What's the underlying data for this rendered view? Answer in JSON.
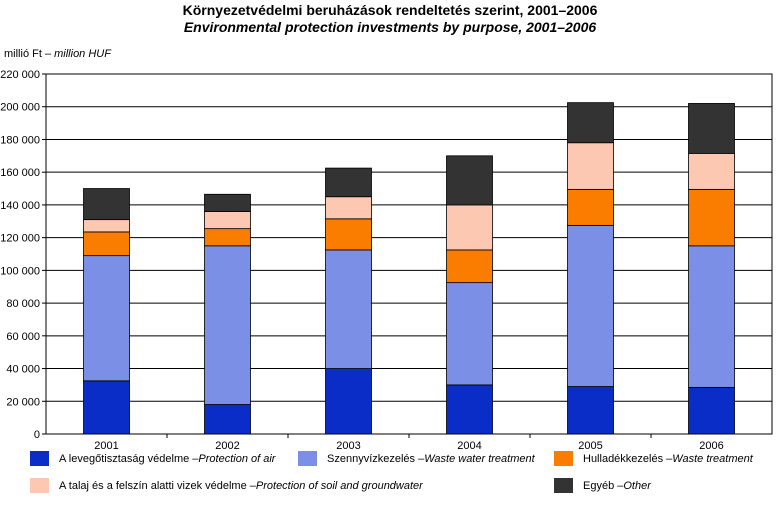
{
  "title_hu": "Környezetvédelmi beruházások rendeltetés szerint, 2001–2006",
  "title_en": "Environmental protection investments by purpose, 2001–2006",
  "unit_hu": "millió Ft – ",
  "unit_en": "million HUF",
  "chart_data": {
    "type": "bar",
    "stacked": true,
    "categories": [
      "2001",
      "2002",
      "2003",
      "2004",
      "2005",
      "2006"
    ],
    "ylim": [
      0,
      220000
    ],
    "yticks": [
      0,
      20000,
      40000,
      60000,
      80000,
      100000,
      120000,
      140000,
      160000,
      180000,
      200000,
      220000
    ],
    "ytick_labels": [
      "0",
      "20 000",
      "40 000",
      "60 000",
      "80 000",
      "100 000",
      "120 000",
      "140 000",
      "160 000",
      "180 000",
      "200 000",
      "220 000"
    ],
    "grid": true,
    "series": [
      {
        "name_hu": "A levegőtisztaság védelme – ",
        "name_en": "Protection of air",
        "color": "#0a2dc8",
        "values": [
          32500,
          18000,
          40000,
          30000,
          29000,
          28500
        ]
      },
      {
        "name_hu": "Szennyvízkezelés – ",
        "name_en": "Waste water treatment",
        "color": "#7b8fe6",
        "values": [
          76500,
          97000,
          72500,
          62500,
          98500,
          86500
        ]
      },
      {
        "name_hu": "Hulladékkezelés – ",
        "name_en": "Waste treatment",
        "color": "#fa7d00",
        "values": [
          14500,
          10500,
          19000,
          20000,
          22000,
          34500
        ]
      },
      {
        "name_hu": "A talaj és a felszín alatti vizek védelme – ",
        "name_en": "Protection of soil and groundwater",
        "color": "#fdc8b2",
        "values": [
          7500,
          10500,
          13500,
          27500,
          28500,
          22000
        ]
      },
      {
        "name_hu": "Egyéb – ",
        "name_en": "Other",
        "color": "#333333",
        "values": [
          19000,
          10500,
          17500,
          30000,
          24500,
          30500
        ]
      }
    ]
  }
}
